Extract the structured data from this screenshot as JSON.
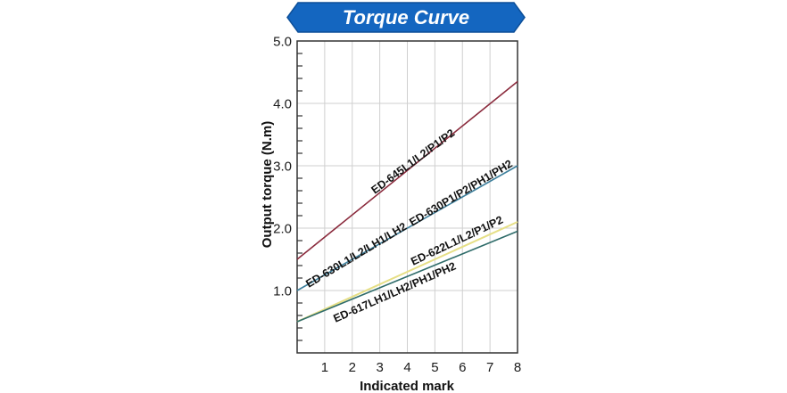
{
  "banner": {
    "title": "Torque Curve",
    "color": "#1466c0",
    "edge_color": "#0d4f99"
  },
  "chart_data": {
    "type": "line",
    "title": "Torque Curve",
    "xlabel": "Indicated mark",
    "ylabel": "Output torque (N.m)",
    "xlim": [
      0,
      8
    ],
    "ylim": [
      0,
      5.0
    ],
    "x_ticks": [
      "1",
      "2",
      "3",
      "4",
      "5",
      "6",
      "7",
      "8"
    ],
    "y_ticks": [
      "1.0",
      "2.0",
      "3.0",
      "4.0",
      "5.0"
    ],
    "y_minor_step": 0.2,
    "grid": true,
    "legend_position": "inline labels along lines",
    "series": [
      {
        "name": "ED-645L1/L2/P1/P2",
        "color": "#8a2a3c",
        "x": [
          0,
          8
        ],
        "values": [
          1.5,
          4.35
        ]
      },
      {
        "name": "ED-630L1/L2/LH1/LH2 ED-630P1/P2/PH1/PH2",
        "color": "#3d7f9c",
        "x": [
          0,
          8
        ],
        "values": [
          1.0,
          3.0
        ],
        "labels": [
          "ED-630L1/L2/LH1/LH2",
          "ED-630P1/P2/PH1/PH2"
        ]
      },
      {
        "name": "ED-622L1/L2/P1/P2",
        "color": "#e6df86",
        "x": [
          0,
          8
        ],
        "values": [
          0.5,
          2.1
        ]
      },
      {
        "name": "ED-617LH1/LH2/PH1/PH2",
        "color": "#2f6c6a",
        "x": [
          0,
          8
        ],
        "values": [
          0.5,
          1.95
        ]
      }
    ]
  }
}
